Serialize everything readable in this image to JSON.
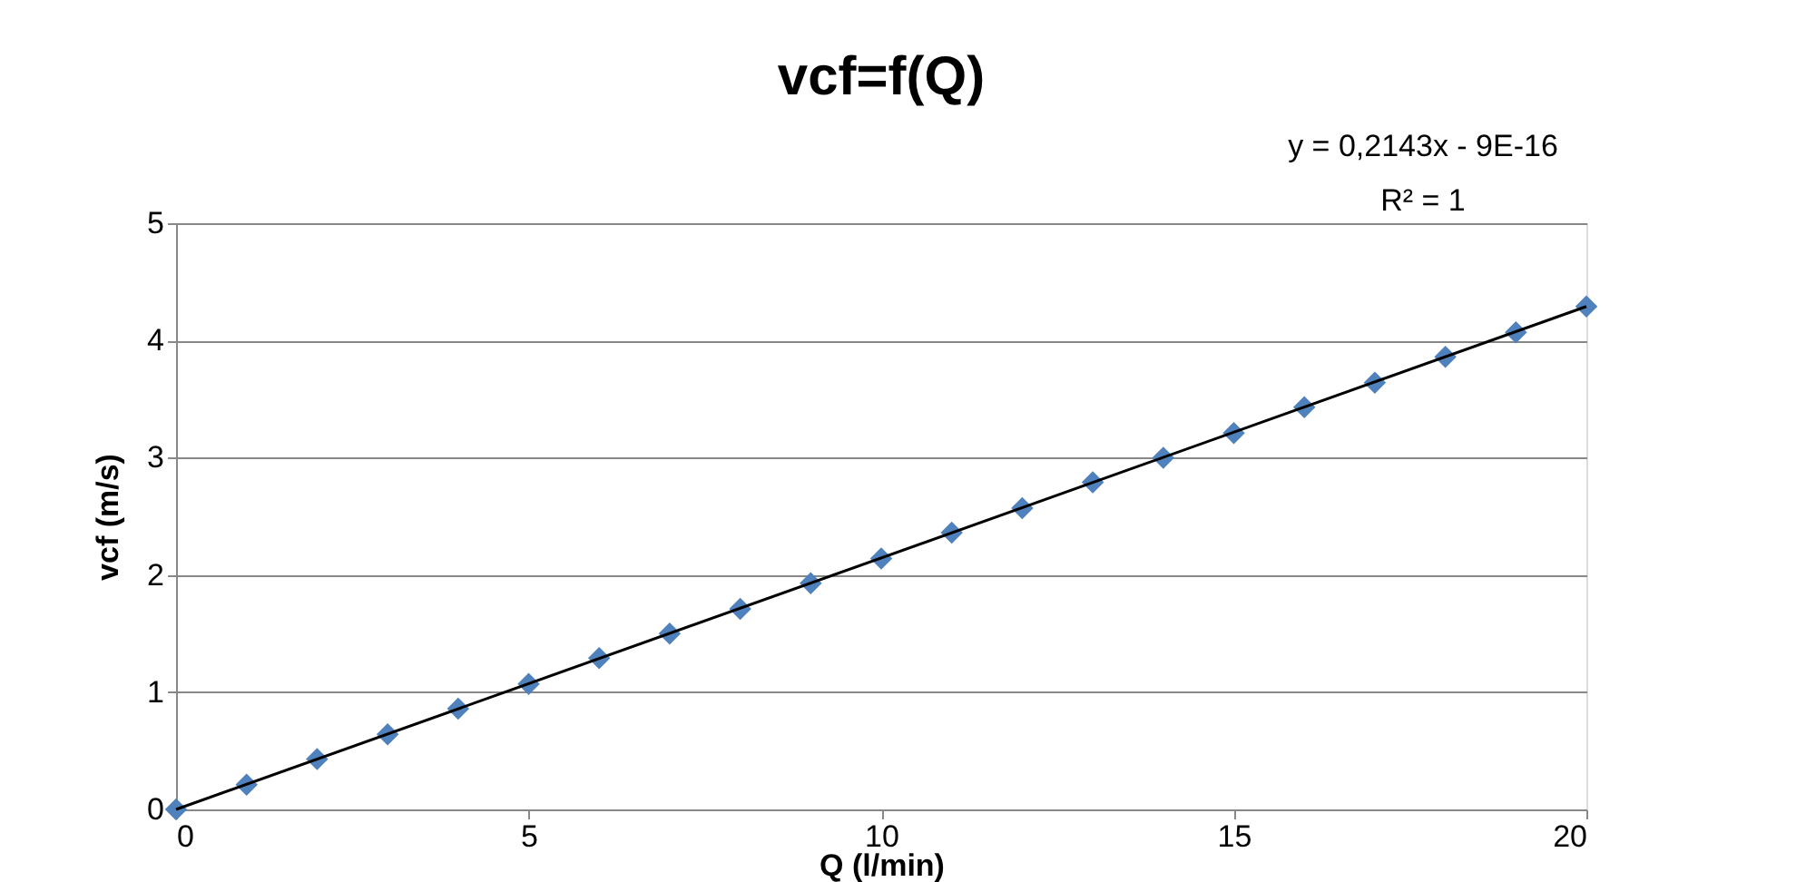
{
  "chart_data": {
    "type": "scatter",
    "title": "vcf=f(Q)",
    "xlabel": "Q (l/min)",
    "ylabel": "vcf (m/s)",
    "annotations": [
      "y = 0,2143x - 9E-16",
      "R² = 1"
    ],
    "x": [
      0,
      1,
      2,
      3,
      4,
      5,
      6,
      7,
      8,
      9,
      10,
      11,
      12,
      13,
      14,
      15,
      16,
      17,
      18,
      19,
      20
    ],
    "series": [
      {
        "color": "#4f81bd",
        "marker": "diamond",
        "values": [
          0,
          0.21,
          0.43,
          0.64,
          0.86,
          1.07,
          1.29,
          1.5,
          1.71,
          1.93,
          2.14,
          2.36,
          2.57,
          2.79,
          3.0,
          3.21,
          3.43,
          3.64,
          3.86,
          4.07,
          4.29
        ]
      },
      {
        "type": "line",
        "color": "#000000",
        "marker": "none",
        "x": [
          0,
          20
        ],
        "values": [
          0,
          4.29
        ]
      }
    ],
    "xlim": [
      0,
      20
    ],
    "xticks": [
      0,
      5,
      10,
      15,
      20
    ],
    "ylim": [
      0,
      5
    ],
    "yticks": [
      0,
      1,
      2,
      3,
      4,
      5
    ],
    "grid": "y"
  }
}
